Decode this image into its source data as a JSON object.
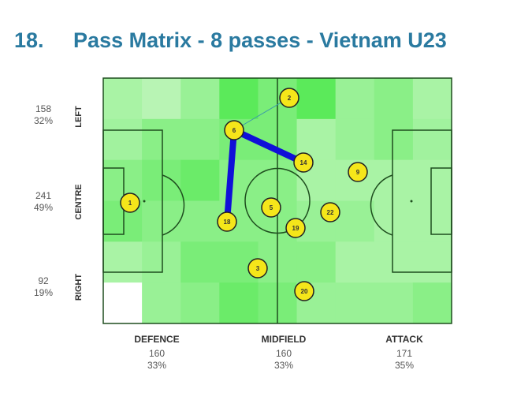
{
  "title": "18.     Pass Matrix - 8 passes - Vietnam U23",
  "rows": [
    {
      "label": "LEFT",
      "count": "158",
      "pct": "32%"
    },
    {
      "label": "CENTRE",
      "count": "241",
      "pct": "49%"
    },
    {
      "label": "RIGHT",
      "count": "92",
      "pct": "19%"
    }
  ],
  "columns": [
    {
      "label": "DEFENCE",
      "count": "160",
      "pct": "33%"
    },
    {
      "label": "MIDFIELD",
      "count": "160",
      "pct": "33%"
    },
    {
      "label": "ATTACK",
      "count": "171",
      "pct": "35%"
    }
  ],
  "chart_data": {
    "type": "heatmap",
    "title": "Pass Matrix - 8 passes - Vietnam U23",
    "heatmap_intensity": [
      [
        0.3,
        0.2,
        0.4,
        0.8,
        0.6,
        0.8,
        0.4,
        0.5,
        0.3
      ],
      [
        0.35,
        0.5,
        0.5,
        0.6,
        0.6,
        0.3,
        0.4,
        0.5,
        0.35
      ],
      [
        0.5,
        0.6,
        0.7,
        0.5,
        0.5,
        0.3,
        0.3,
        0.3,
        0.3
      ],
      [
        0.6,
        0.5,
        0.5,
        0.5,
        0.5,
        0.4,
        0.4,
        0.3,
        0.3
      ],
      [
        0.3,
        0.4,
        0.6,
        0.6,
        0.5,
        0.5,
        0.3,
        0.3,
        0.3
      ],
      [
        0,
        0.4,
        0.5,
        0.7,
        0.6,
        0.4,
        0.4,
        0.4,
        0.5
      ]
    ],
    "players": [
      "1",
      "2",
      "6",
      "14",
      "9",
      "5",
      "18",
      "19",
      "22",
      "3",
      "20"
    ],
    "passes": [
      {
        "from": "2",
        "to": "6",
        "weight": 1
      },
      {
        "from": "6",
        "to": "14",
        "weight": 4
      },
      {
        "from": "6",
        "to": "18",
        "weight": 4
      }
    ],
    "colors": {
      "heat_low": "#e8fae8",
      "heat_high": "#33e033",
      "player": "#f5e61a",
      "pass_thin": "#3a9aa8",
      "pass_thick": "#1010d8",
      "lines": "#1e4d1e"
    }
  }
}
